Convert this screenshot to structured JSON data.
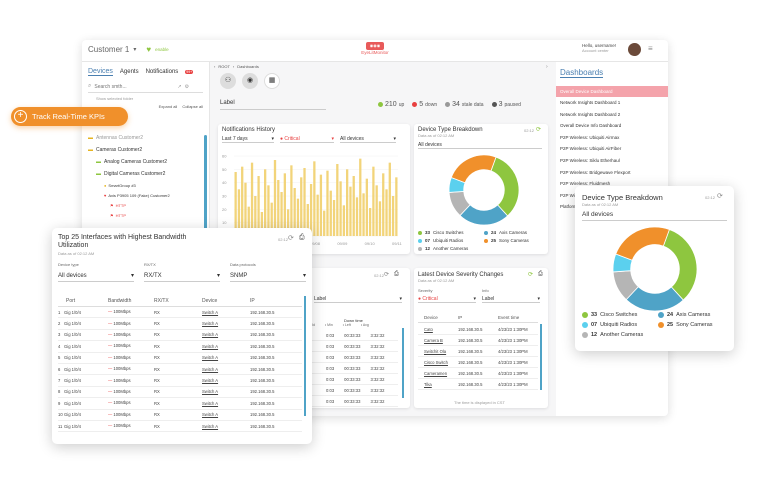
{
  "header": {
    "customer": "Customer 1",
    "status": "enable",
    "logo_text": "EyeLitMonitor",
    "user_greeting": "Hello, username!",
    "user_sub": "Account center"
  },
  "sidebar": {
    "tabs": [
      "Devices",
      "Agents",
      "Notifications"
    ],
    "notif_count": "99+",
    "search_placeholder": "Search smth...",
    "hint": "Show selected folder",
    "expand_all": "Expand all",
    "collapse_all": "Collapse all",
    "tree": [
      {
        "label": "Antennas Customer2",
        "level": 0
      },
      {
        "label": "Cameras Customer2",
        "level": 0
      },
      {
        "label": "Analog Cameras Customer2",
        "level": 1
      },
      {
        "label": "Digital Cameras Customer2",
        "level": 1
      },
      {
        "label": "SmartGroup #3",
        "level": 2
      },
      {
        "label": "Axis P3905 109 (Fake) Customer2",
        "level": 2
      },
      {
        "label": "HTTP",
        "level": 3
      },
      {
        "label": "HTTP",
        "level": 3
      }
    ]
  },
  "breadcrumb": {
    "root": "ROOT",
    "current": "Dashboards"
  },
  "kpis": {
    "label": "Label",
    "up": "210",
    "up_label": "up",
    "down": "5",
    "down_label": "down",
    "stale": "34",
    "stale_label": "stale data",
    "paused": "3",
    "paused_label": "paused"
  },
  "promo": {
    "label": "Track Real-Time KPIs"
  },
  "notifications_history": {
    "title": "Notifications History",
    "period": "Last 7 days",
    "severity": "Critical",
    "devices": "All devices",
    "footer": "The time is displayed in CST"
  },
  "donut_small": {
    "title": "Device Type Breakdown",
    "sub": "Data as of 02:12 AM",
    "time": "02:12",
    "filter": "All devices"
  },
  "dashboards_panel": {
    "title": "Dashboards",
    "items": [
      "Overall Device Dashboard",
      "Network Insights Dashboard 1",
      "Network Insights Dashboard 2",
      "Overall Device Info Dashboard",
      "P2P Wireless: Ubiquiti Airmax",
      "P2P Wireless: Ubiquiti AirFiber",
      "P2P Wireless: Siklu Etherhaul",
      "P2P Wireless: Bridgewave Flexport",
      "P2P Wireless: Fluidmesh",
      "P2P Wireless",
      "Platform"
    ]
  },
  "top25": {
    "title": "Top 25 Interfaces with Highest Bandwidth Utilization",
    "sub": "Data as of 02:12 AM",
    "time": "02:12",
    "filters": [
      {
        "label": "Device type",
        "value": "All devices"
      },
      {
        "label": "RX/TX",
        "value": "RX/TX"
      },
      {
        "label": "Data protocols",
        "value": "SNMP"
      }
    ],
    "columns": [
      "Port",
      "Bandwidth",
      "RX/TX",
      "Device",
      "IP"
    ],
    "rows": [
      [
        "1",
        "Gig 1/0/4",
        "100Mbps",
        "RX",
        "Switch A",
        "192.168.30.5"
      ],
      [
        "2",
        "Gig 1/0/4",
        "100Mbps",
        "RX",
        "Switch A",
        "192.168.30.5"
      ],
      [
        "3",
        "Gig 1/0/4",
        "100Mbps",
        "RX",
        "Switch A",
        "192.168.30.5"
      ],
      [
        "4",
        "Gig 1/0/4",
        "100Mbps",
        "RX",
        "Switch A",
        "192.168.30.5"
      ],
      [
        "5",
        "Gig 1/0/4",
        "100Mbps",
        "RX",
        "Switch A",
        "192.168.30.5"
      ],
      [
        "6",
        "Gig 1/0/4",
        "100Mbps",
        "RX",
        "Switch A",
        "192.168.30.5"
      ],
      [
        "7",
        "Gig 1/0/4",
        "100Mbps",
        "RX",
        "Switch A",
        "192.168.30.5"
      ],
      [
        "8",
        "Gig 1/0/4",
        "100Mbps",
        "RX",
        "Switch A",
        "192.168.30.5"
      ],
      [
        "9",
        "Gig 1/0/4",
        "100Mbps",
        "RX",
        "Switch A",
        "192.168.30.5"
      ],
      [
        "10",
        "Gig 1/0/4",
        "100Mbps",
        "RX",
        "Switch A",
        "192.168.30.5"
      ],
      [
        "11",
        "Gig 1/0/4",
        "100Mbps",
        "RX",
        "Switch A",
        "192.168.30.5"
      ]
    ]
  },
  "downtime": {
    "time": "02:12",
    "filter": "Label",
    "columns": [
      "Down time",
      "Min",
      "Left",
      "Avg",
      "Max"
    ],
    "rows": [
      [
        "0:03",
        "00:33:33",
        "3:32:32"
      ],
      [
        "0:03",
        "00:33:33",
        "3:32:32"
      ],
      [
        "0:03",
        "00:33:33",
        "3:32:32"
      ],
      [
        "0:03",
        "00:33:33",
        "3:32:32"
      ],
      [
        "0:03",
        "00:33:33",
        "3:32:32"
      ],
      [
        "0:03",
        "00:33:33",
        "3:32:32"
      ],
      [
        "0:03",
        "00:33:33",
        "3:32:32"
      ]
    ]
  },
  "severity_changes": {
    "title": "Latest Device Severity Changes",
    "sub": "Data as of 02:12 AM",
    "severity_label": "Severity",
    "severity_value": "Critical",
    "info_label": "Info",
    "info_value": "Label",
    "columns": [
      "Device",
      "IP",
      "Event time"
    ],
    "rows": [
      [
        "Cato",
        "192.168.30.5",
        "4/23/23 1:30PM"
      ],
      [
        "Camera B",
        "192.168.30.5",
        "4/23/23 1:30PM"
      ],
      [
        "Switchit Ola",
        "192.168.30.5",
        "4/23/23 1:30PM"
      ],
      [
        "Cisco Switch",
        "192.168.30.5",
        "4/23/23 1:30PM"
      ],
      [
        "Cameramen",
        "192.168.30.5",
        "4/23/23 1:30PM"
      ],
      [
        "Tika",
        "192.168.30.5",
        "4/23/23 1:30PM"
      ]
    ],
    "footer": "The time is displayed in CST"
  },
  "donut_large": {
    "title": "Device Type Breakdown",
    "sub": "Data as of 02:12 AM",
    "time": "02:12",
    "filter": "All devices",
    "legend": [
      {
        "count": "33",
        "label": "Cisco Switches",
        "color": "#8ec63f"
      },
      {
        "count": "24",
        "label": "Axis Cameras",
        "color": "#4fa3c7"
      },
      {
        "count": "07",
        "label": "Ubiquiti Radios",
        "color": "#5bd0ee"
      },
      {
        "count": "25",
        "label": "Sony Cameras",
        "color": "#f0902b"
      },
      {
        "count": "12",
        "label": "Another Cameras",
        "color": "#b5b5b5"
      }
    ]
  },
  "chart_data": [
    {
      "type": "bar",
      "title": "Notifications History",
      "ylim": [
        0,
        60
      ],
      "yticks": [
        "60",
        "50",
        "40",
        "30",
        "20",
        "10",
        "0"
      ],
      "xticks": [
        "09/05",
        "09/06",
        "09/07",
        "09/08",
        "09/09",
        "09/10",
        "09/11"
      ],
      "values": [
        48,
        35,
        52,
        40,
        22,
        55,
        30,
        45,
        18,
        50,
        38,
        25,
        57,
        42,
        33,
        47,
        20,
        53,
        36,
        28,
        44,
        51,
        24,
        39,
        56,
        31,
        46,
        19,
        49,
        34,
        27,
        54,
        41,
        23,
        50,
        37,
        45,
        29,
        58,
        32,
        43,
        21,
        52,
        38,
        26,
        47,
        35,
        55,
        30,
        44
      ]
    },
    {
      "type": "pie",
      "title": "Device Type Breakdown",
      "labels": [
        "Cisco Switches",
        "Axis Cameras",
        "Ubiquiti Radios",
        "Sony Cameras",
        "Another Cameras"
      ],
      "values": [
        33,
        24,
        7,
        25,
        12
      ]
    }
  ]
}
